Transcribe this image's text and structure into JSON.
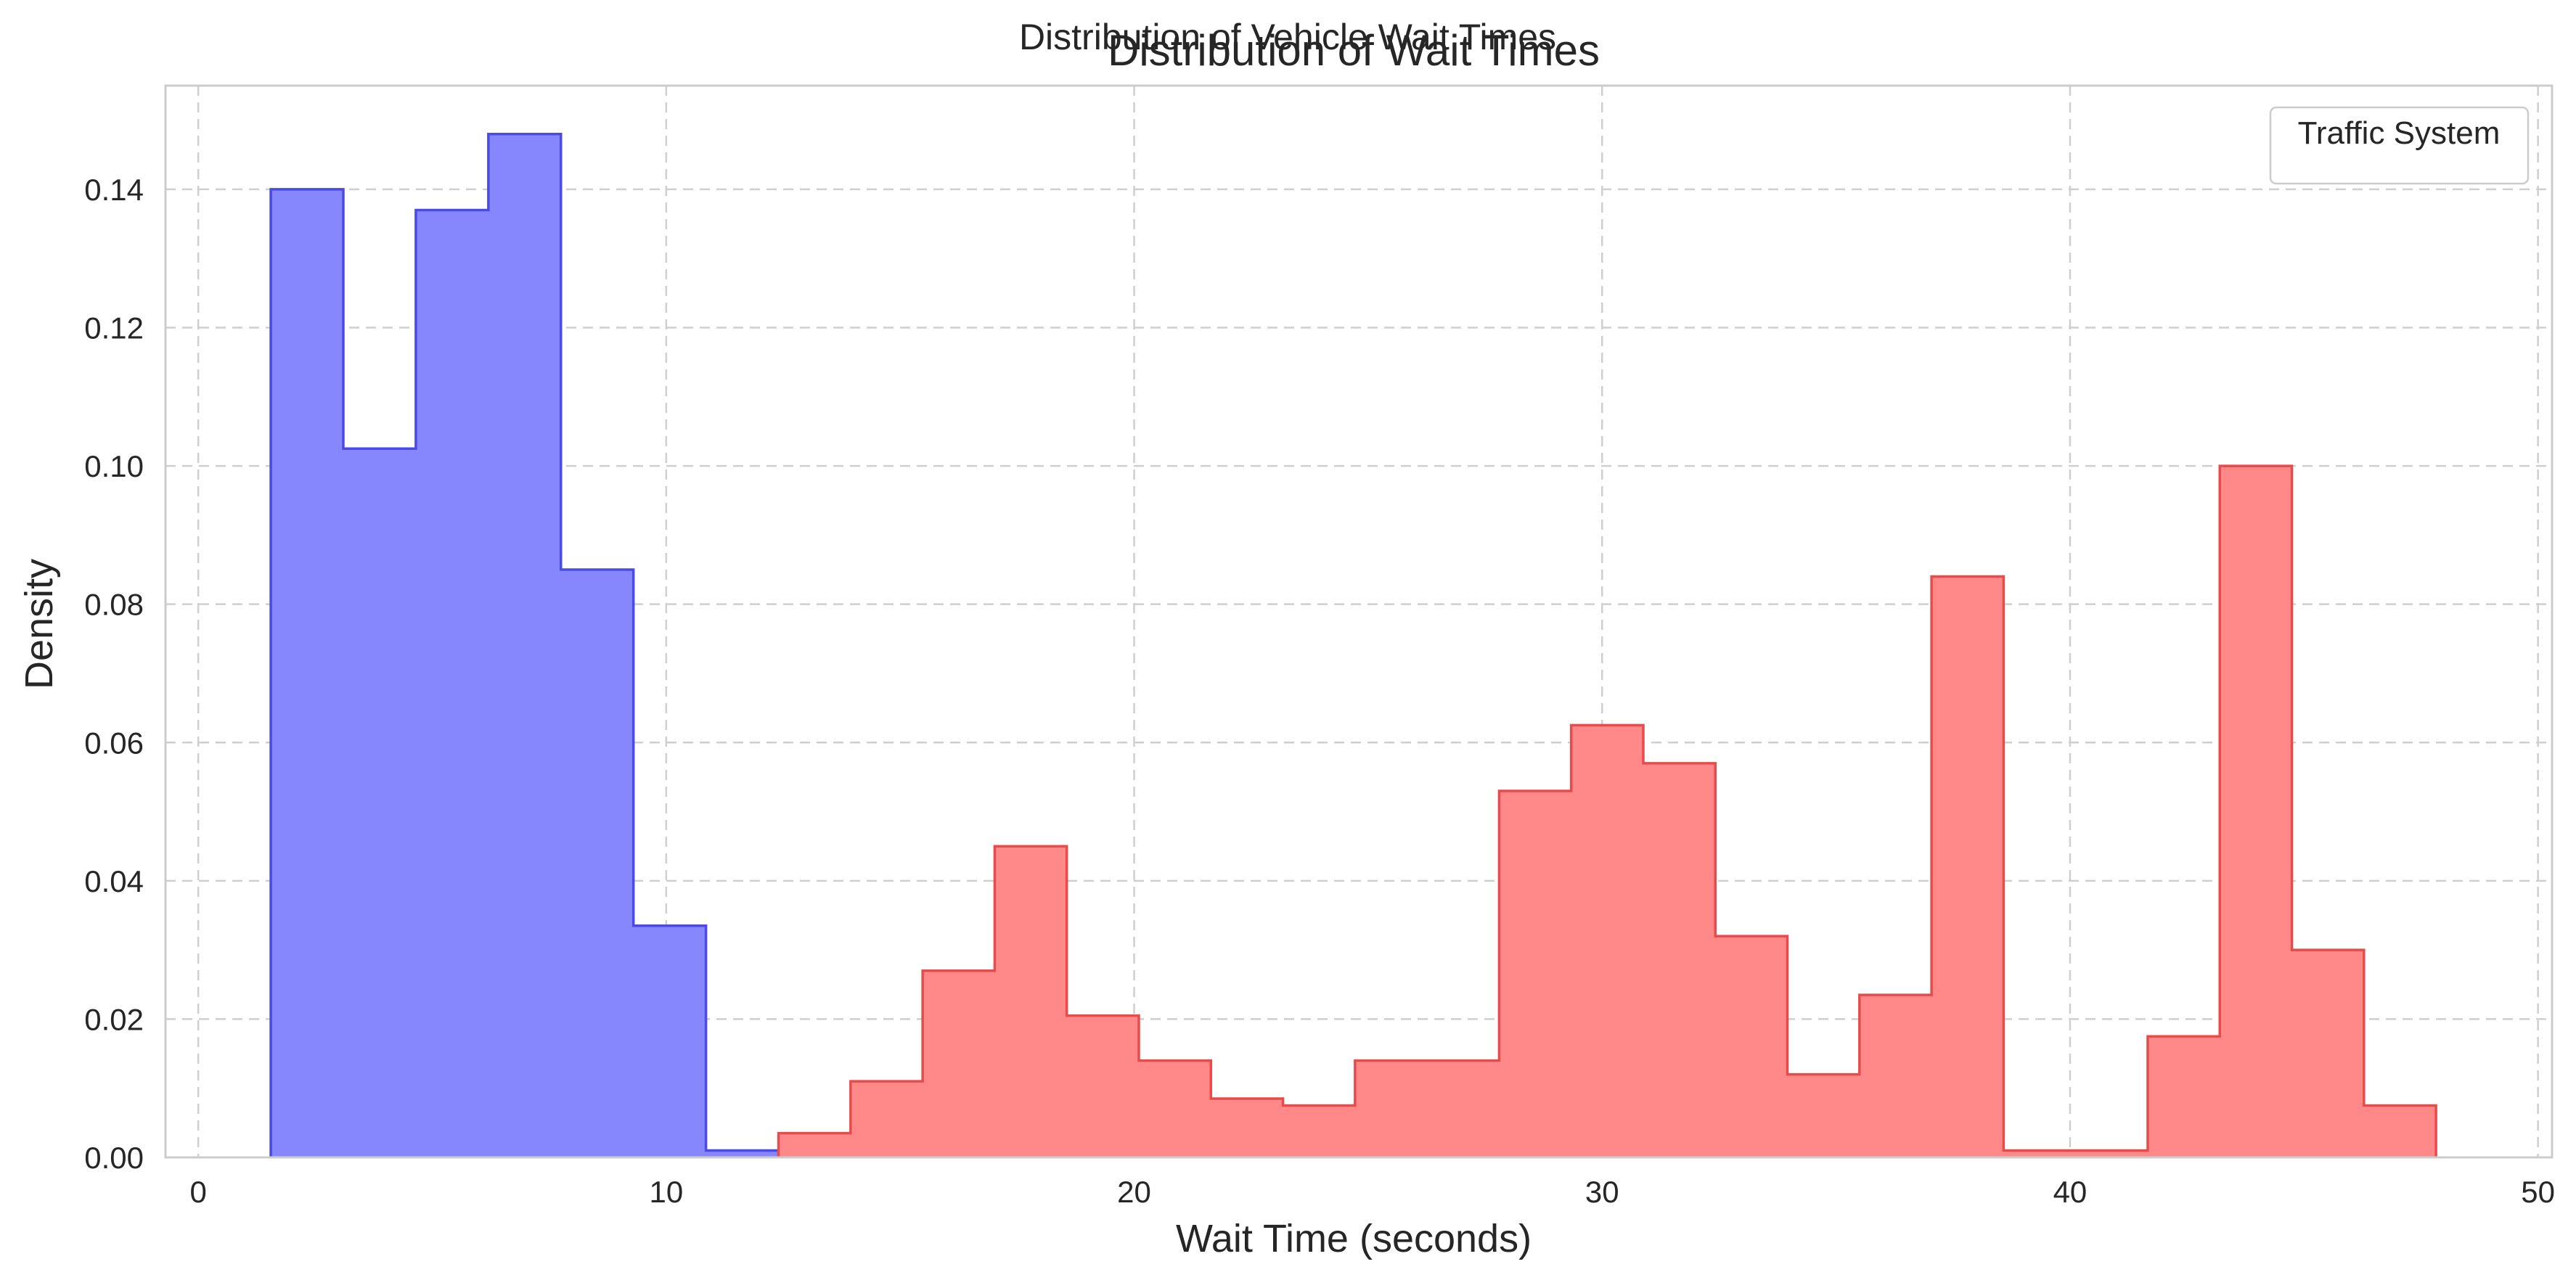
{
  "figure": {
    "suptitle": "Distribution of Vehicle Wait Times"
  },
  "chart_data": {
    "type": "histogram",
    "title": "Distribution of Wait Times",
    "xlabel": "Wait Time (seconds)",
    "ylabel": "Density",
    "xlim": [
      -0.7,
      50.3
    ],
    "ylim": [
      0,
      0.155
    ],
    "x_ticks": [
      "0",
      "10",
      "20",
      "30",
      "40",
      "50"
    ],
    "y_ticks": [
      "0.00",
      "0.02",
      "0.04",
      "0.06",
      "0.08",
      "0.10",
      "0.12",
      "0.14"
    ],
    "grid": true,
    "legend": {
      "title": "Traffic System",
      "position": "top-right",
      "entries": []
    },
    "series": [
      {
        "color_fill": "#8787fd",
        "color_edge": "#4a4ae8",
        "bin_edges": [
          1.55,
          3.1,
          4.65,
          6.2,
          7.75,
          9.3,
          10.85,
          12.4
        ],
        "values": [
          0.14,
          0.1025,
          0.137,
          0.148,
          0.085,
          0.0335,
          0.001
        ]
      },
      {
        "color_fill": "#ff8888",
        "color_edge": "#e84b4b",
        "bin_edges": [
          12.4,
          13.94,
          15.48,
          17.02,
          18.56,
          20.1,
          21.64,
          23.18,
          24.72,
          26.26,
          27.8,
          29.34,
          30.88,
          32.42,
          33.96,
          35.5,
          37.04,
          38.58,
          40.12,
          41.66,
          43.2,
          44.74,
          46.28,
          47.82
        ],
        "values": [
          0.0035,
          0.011,
          0.027,
          0.045,
          0.0205,
          0.014,
          0.0085,
          0.0075,
          0.014,
          0.014,
          0.053,
          0.0625,
          0.057,
          0.032,
          0.012,
          0.0235,
          0.084,
          0.001,
          0.001,
          0.0175,
          0.1,
          0.03,
          0.0075
        ]
      }
    ]
  }
}
